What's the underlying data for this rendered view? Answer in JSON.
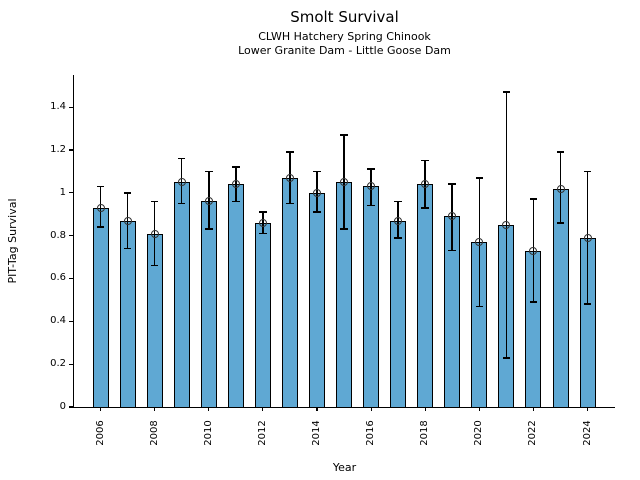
{
  "title": "Smolt Survival",
  "chart_data": {
    "type": "bar",
    "title": "Smolt Survival",
    "subtitles": [
      "CLWH Hatchery Spring Chinook",
      "Lower Granite Dam - Little Goose Dam"
    ],
    "xlabel": "Year",
    "ylabel": "PIT-Tag Survival",
    "categories": [
      2006,
      2007,
      2008,
      2009,
      2010,
      2011,
      2012,
      2013,
      2014,
      2015,
      2016,
      2017,
      2018,
      2019,
      2020,
      2021,
      2022,
      2023,
      2024
    ],
    "values": [
      0.93,
      0.87,
      0.81,
      1.05,
      0.96,
      1.04,
      0.86,
      1.07,
      1.0,
      1.05,
      1.03,
      0.87,
      1.04,
      0.89,
      0.77,
      0.85,
      0.73,
      1.02,
      0.79
    ],
    "error_low": [
      0.84,
      0.74,
      0.66,
      0.95,
      0.83,
      0.96,
      0.81,
      0.95,
      0.91,
      0.83,
      0.94,
      0.79,
      0.93,
      0.73,
      0.47,
      0.23,
      0.49,
      0.86,
      0.48
    ],
    "error_high": [
      1.03,
      1.0,
      0.96,
      1.16,
      1.1,
      1.12,
      0.91,
      1.19,
      1.1,
      1.27,
      1.11,
      0.96,
      1.15,
      1.04,
      1.07,
      1.47,
      0.97,
      1.19,
      1.1
    ],
    "xlim": [
      2005,
      2025
    ],
    "ylim": [
      0,
      1.55
    ],
    "yticks": [
      0,
      0.2,
      0.4,
      0.6,
      0.8,
      1.0,
      1.2,
      1.4
    ],
    "ytick_labels": [
      "0",
      "0.2",
      "0.4",
      "0.6",
      "0.8",
      "1",
      "1.2",
      "1.4"
    ],
    "xticks": [
      2006,
      2008,
      2010,
      2012,
      2014,
      2016,
      2018,
      2020,
      2022,
      2024
    ],
    "xtick_labels": [
      "2006",
      "2008",
      "2010",
      "2012",
      "2014",
      "2016",
      "2018",
      "2020",
      "2022",
      "2024"
    ],
    "grid": false,
    "legend": null,
    "marker": "open-circle",
    "bar_color": "#5fa8d3",
    "bar_edge_color": "#000000",
    "error_color": "#000000",
    "marker_edge_color": "#333333",
    "background_color": "#ffffff"
  }
}
